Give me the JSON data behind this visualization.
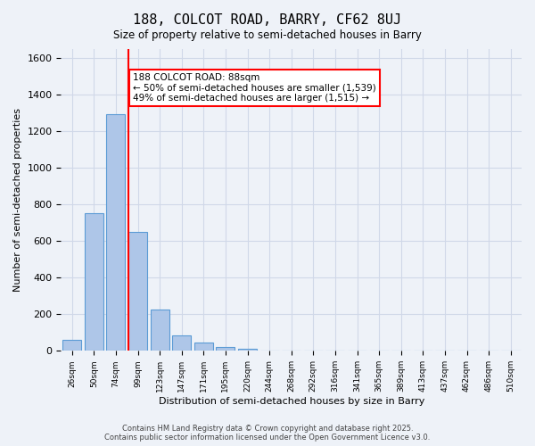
{
  "title": "188, COLCOT ROAD, BARRY, CF62 8UJ",
  "subtitle": "Size of property relative to semi-detached houses in Barry",
  "xlabel": "Distribution of semi-detached houses by size in Barry",
  "ylabel": "Number of semi-detached properties",
  "bar_values": [
    60,
    755,
    1295,
    648,
    228,
    85,
    45,
    22,
    10,
    0,
    0,
    0,
    0,
    0,
    0,
    0,
    0,
    0,
    0,
    0,
    0
  ],
  "categories": [
    "26sqm",
    "50sqm",
    "74sqm",
    "99sqm",
    "123sqm",
    "147sqm",
    "171sqm",
    "195sqm",
    "220sqm",
    "244sqm",
    "268sqm",
    "292sqm",
    "316sqm",
    "341sqm",
    "365sqm",
    "389sqm",
    "413sqm",
    "437sqm",
    "462sqm",
    "486sqm",
    "510sqm"
  ],
  "bar_color": "#aec6e8",
  "bar_edge_color": "#5b9bd5",
  "vline_color": "red",
  "ylim": [
    0,
    1650
  ],
  "annotation_text": "188 COLCOT ROAD: 88sqm\n← 50% of semi-detached houses are smaller (1,539)\n49% of semi-detached houses are larger (1,515) →",
  "annotation_box_color": "white",
  "annotation_box_edge_color": "red",
  "grid_color": "#d0d8e8",
  "background_color": "#eef2f8",
  "footer_line1": "Contains HM Land Registry data © Crown copyright and database right 2025.",
  "footer_line2": "Contains public sector information licensed under the Open Government Licence v3.0."
}
